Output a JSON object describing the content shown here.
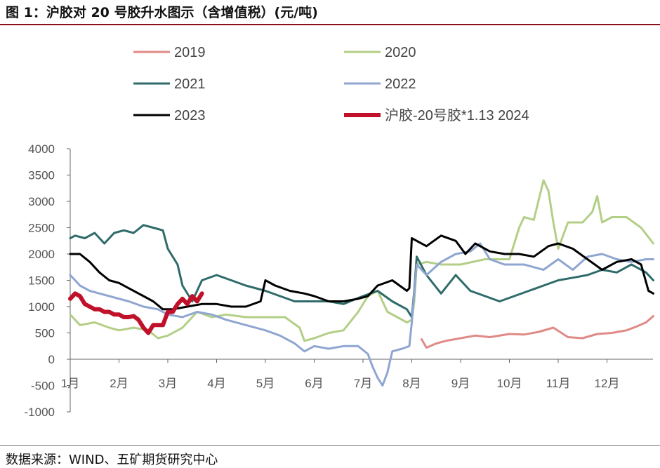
{
  "title": "图 1：沪胶对 20 号胶升水图示（含增值税）(元/吨)",
  "source": "数据来源：WIND、五矿期货研究中心",
  "chart_data": {
    "type": "line",
    "title": "图 1：沪胶对 20 号胶升水图示（含增值税）(元/吨)",
    "xlabel": "",
    "ylabel": "",
    "ylim": [
      -1000,
      4000
    ],
    "yticks": [
      4000,
      3500,
      3000,
      2500,
      2000,
      1500,
      1000,
      500,
      0,
      -500,
      -1000
    ],
    "categories": [
      "1月",
      "2月",
      "3月",
      "4月",
      "5月",
      "6月",
      "7月",
      "8月",
      "9月",
      "10月",
      "11月",
      "12月"
    ],
    "grid": false,
    "legend_position": "top",
    "series": [
      {
        "name": "2019",
        "color": "#e08a86",
        "width": 3,
        "x": [
          8.2,
          8.3,
          8.5,
          8.7,
          9.0,
          9.3,
          9.6,
          10.0,
          10.3,
          10.6,
          10.9,
          11.2,
          11.5,
          11.8,
          12.1,
          12.4,
          12.6,
          12.8,
          12.95
        ],
        "values": [
          380,
          220,
          300,
          350,
          400,
          450,
          420,
          480,
          470,
          520,
          600,
          420,
          400,
          480,
          500,
          550,
          620,
          700,
          820
        ]
      },
      {
        "name": "2020",
        "color": "#b3cf87",
        "width": 3,
        "x": [
          1.0,
          1.2,
          1.5,
          1.8,
          2.0,
          2.3,
          2.6,
          2.8,
          3.0,
          3.3,
          3.6,
          3.9,
          4.2,
          4.6,
          5.0,
          5.4,
          5.7,
          5.8,
          6.0,
          6.3,
          6.6,
          6.9,
          7.1,
          7.3,
          7.5,
          7.7,
          7.9,
          8.0,
          8.05,
          8.1,
          8.3,
          8.6,
          9.0,
          9.5,
          10.0,
          10.2,
          10.3,
          10.5,
          10.7,
          10.8,
          10.9,
          11.0,
          11.2,
          11.5,
          11.7,
          11.8,
          11.9,
          12.1,
          12.4,
          12.7,
          12.95
        ],
        "values": [
          850,
          650,
          700,
          600,
          550,
          600,
          550,
          400,
          450,
          600,
          900,
          800,
          850,
          800,
          800,
          800,
          600,
          350,
          400,
          500,
          550,
          900,
          1200,
          1300,
          900,
          800,
          700,
          750,
          1100,
          1800,
          1850,
          1800,
          1800,
          1900,
          1900,
          2500,
          2700,
          2650,
          3400,
          3200,
          2600,
          2100,
          2600,
          2600,
          2800,
          3100,
          2600,
          2700,
          2700,
          2500,
          2200
        ]
      },
      {
        "name": "2021",
        "color": "#2e6b6a",
        "width": 3,
        "x": [
          1.0,
          1.1,
          1.3,
          1.5,
          1.7,
          1.9,
          2.1,
          2.3,
          2.5,
          2.7,
          2.9,
          3.0,
          3.2,
          3.3,
          3.5,
          3.7,
          4.0,
          4.3,
          4.6,
          5.0,
          5.3,
          5.6,
          6.0,
          6.3,
          6.6,
          7.0,
          7.3,
          7.6,
          7.9,
          8.0,
          8.05,
          8.1,
          8.3,
          8.6,
          8.9,
          9.2,
          9.5,
          9.8,
          10.1,
          10.4,
          10.7,
          11.0,
          11.3,
          11.6,
          11.9,
          12.2,
          12.5,
          12.8,
          12.95
        ],
        "values": [
          2300,
          2350,
          2300,
          2400,
          2200,
          2400,
          2450,
          2400,
          2550,
          2500,
          2450,
          2100,
          1800,
          1400,
          1100,
          1500,
          1600,
          1500,
          1400,
          1300,
          1200,
          1100,
          1100,
          1100,
          1050,
          1200,
          1300,
          1100,
          950,
          800,
          1300,
          1950,
          1600,
          1250,
          1600,
          1300,
          1200,
          1100,
          1200,
          1300,
          1400,
          1500,
          1550,
          1600,
          1700,
          1650,
          1800,
          1650,
          1500
        ]
      },
      {
        "name": "2022",
        "color": "#8fa6d1",
        "width": 3,
        "x": [
          1.0,
          1.2,
          1.4,
          1.6,
          1.8,
          2.0,
          2.2,
          2.5,
          2.8,
          3.0,
          3.3,
          3.6,
          3.9,
          4.2,
          4.6,
          5.0,
          5.3,
          5.6,
          5.8,
          6.0,
          6.3,
          6.6,
          6.9,
          7.1,
          7.2,
          7.3,
          7.4,
          7.5,
          7.6,
          7.8,
          7.95,
          8.0,
          8.1,
          8.3,
          8.6,
          8.9,
          9.2,
          9.4,
          9.6,
          9.9,
          10.3,
          10.7,
          11.0,
          11.3,
          11.6,
          11.9,
          12.2,
          12.5,
          12.8,
          12.95
        ],
        "values": [
          1600,
          1400,
          1300,
          1250,
          1200,
          1150,
          1100,
          1000,
          950,
          850,
          800,
          900,
          850,
          750,
          650,
          550,
          450,
          300,
          150,
          250,
          200,
          250,
          250,
          100,
          -150,
          -350,
          -500,
          -250,
          150,
          200,
          250,
          700,
          1800,
          1600,
          1850,
          2000,
          2050,
          2200,
          1900,
          1800,
          1800,
          1700,
          1900,
          1700,
          1950,
          2000,
          1900,
          1850,
          1900,
          1900
        ]
      },
      {
        "name": "2023",
        "color": "#000000",
        "width": 3,
        "x": [
          1.0,
          1.2,
          1.4,
          1.6,
          1.8,
          2.0,
          2.2,
          2.5,
          2.7,
          2.9,
          3.1,
          3.4,
          3.7,
          4.0,
          4.3,
          4.6,
          4.9,
          5.0,
          5.2,
          5.5,
          5.8,
          6.0,
          6.3,
          6.6,
          6.9,
          7.1,
          7.3,
          7.6,
          7.9,
          7.95,
          8.0,
          8.1,
          8.3,
          8.6,
          8.9,
          9.1,
          9.3,
          9.6,
          9.9,
          10.2,
          10.5,
          10.8,
          11.0,
          11.3,
          11.6,
          11.9,
          12.2,
          12.5,
          12.7,
          12.85,
          12.95
        ],
        "values": [
          2000,
          2000,
          1850,
          1650,
          1500,
          1450,
          1350,
          1200,
          1100,
          950,
          950,
          1000,
          1050,
          1050,
          1000,
          1000,
          1100,
          1500,
          1400,
          1300,
          1250,
          1200,
          1100,
          1100,
          1150,
          1200,
          1400,
          1500,
          1300,
          1350,
          2300,
          2250,
          2150,
          2350,
          2250,
          2000,
          2200,
          2050,
          2000,
          2000,
          1950,
          2150,
          2200,
          2100,
          1900,
          1700,
          1850,
          1900,
          1800,
          1300,
          1250
        ]
      },
      {
        "name": "沪胶-20号胶*1.13 2024",
        "color": "#c0102a",
        "width": 6,
        "x": [
          1.0,
          1.1,
          1.2,
          1.3,
          1.4,
          1.5,
          1.6,
          1.7,
          1.8,
          1.9,
          2.0,
          2.1,
          2.2,
          2.3,
          2.4,
          2.5,
          2.6,
          2.7,
          2.8,
          2.9,
          3.0,
          3.1,
          3.2,
          3.3,
          3.4,
          3.5,
          3.6,
          3.7
        ],
        "values": [
          1150,
          1250,
          1200,
          1050,
          1000,
          950,
          950,
          900,
          900,
          850,
          850,
          800,
          800,
          820,
          750,
          600,
          500,
          650,
          650,
          650,
          900,
          900,
          1050,
          1150,
          1050,
          1200,
          1100,
          1250
        ]
      }
    ]
  }
}
